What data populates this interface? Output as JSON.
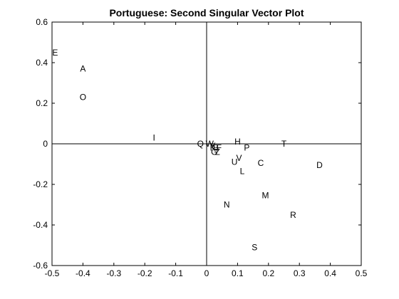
{
  "chart_data": {
    "type": "scatter",
    "title": "Portuguese: Second Singular Vector Plot",
    "xlabel": "",
    "ylabel": "",
    "xlim": [
      -0.5,
      0.5
    ],
    "ylim": [
      -0.6,
      0.6
    ],
    "xticks": [
      -0.5,
      -0.4,
      -0.3,
      -0.2,
      -0.1,
      0,
      0.1,
      0.2,
      0.3,
      0.4,
      0.5
    ],
    "yticks": [
      -0.6,
      -0.4,
      -0.2,
      0,
      0.2,
      0.4,
      0.6
    ],
    "xtick_labels": [
      "-0.5",
      "-0.4",
      "-0.3",
      "-0.2",
      "-0.1",
      "0",
      "0.1",
      "0.2",
      "0.3",
      "0.4",
      "0.5"
    ],
    "ytick_labels": [
      "-0.6",
      "-0.4",
      "-0.2",
      "0",
      "0.2",
      "0.4",
      "0.6"
    ],
    "grid": false,
    "legend": "none",
    "points": [
      {
        "label": "E",
        "x": -0.49,
        "y": 0.45
      },
      {
        "label": "A",
        "x": -0.4,
        "y": 0.37
      },
      {
        "label": "O",
        "x": -0.4,
        "y": 0.23
      },
      {
        "label": "I",
        "x": -0.17,
        "y": 0.03
      },
      {
        "label": "Q",
        "x": -0.02,
        "y": 0.0
      },
      {
        "label": "W",
        "x": 0.01,
        "y": 0.0
      },
      {
        "label": "Y",
        "x": 0.02,
        "y": -0.01
      },
      {
        "label": "K",
        "x": 0.02,
        "y": -0.02
      },
      {
        "label": "B",
        "x": 0.03,
        "y": -0.02
      },
      {
        "label": "F",
        "x": 0.04,
        "y": -0.02
      },
      {
        "label": "G",
        "x": 0.025,
        "y": -0.04
      },
      {
        "label": "Z",
        "x": 0.035,
        "y": -0.04
      },
      {
        "label": "H",
        "x": 0.1,
        "y": 0.01
      },
      {
        "label": "P",
        "x": 0.13,
        "y": -0.02
      },
      {
        "label": "T",
        "x": 0.25,
        "y": 0.0
      },
      {
        "label": "V",
        "x": 0.105,
        "y": -0.07
      },
      {
        "label": "U",
        "x": 0.09,
        "y": -0.09
      },
      {
        "label": "C",
        "x": 0.175,
        "y": -0.095
      },
      {
        "label": "L",
        "x": 0.115,
        "y": -0.135
      },
      {
        "label": "D",
        "x": 0.365,
        "y": -0.105
      },
      {
        "label": "M",
        "x": 0.19,
        "y": -0.255
      },
      {
        "label": "N",
        "x": 0.065,
        "y": -0.3
      },
      {
        "label": "R",
        "x": 0.28,
        "y": -0.35
      },
      {
        "label": "S",
        "x": 0.155,
        "y": -0.51
      }
    ]
  }
}
